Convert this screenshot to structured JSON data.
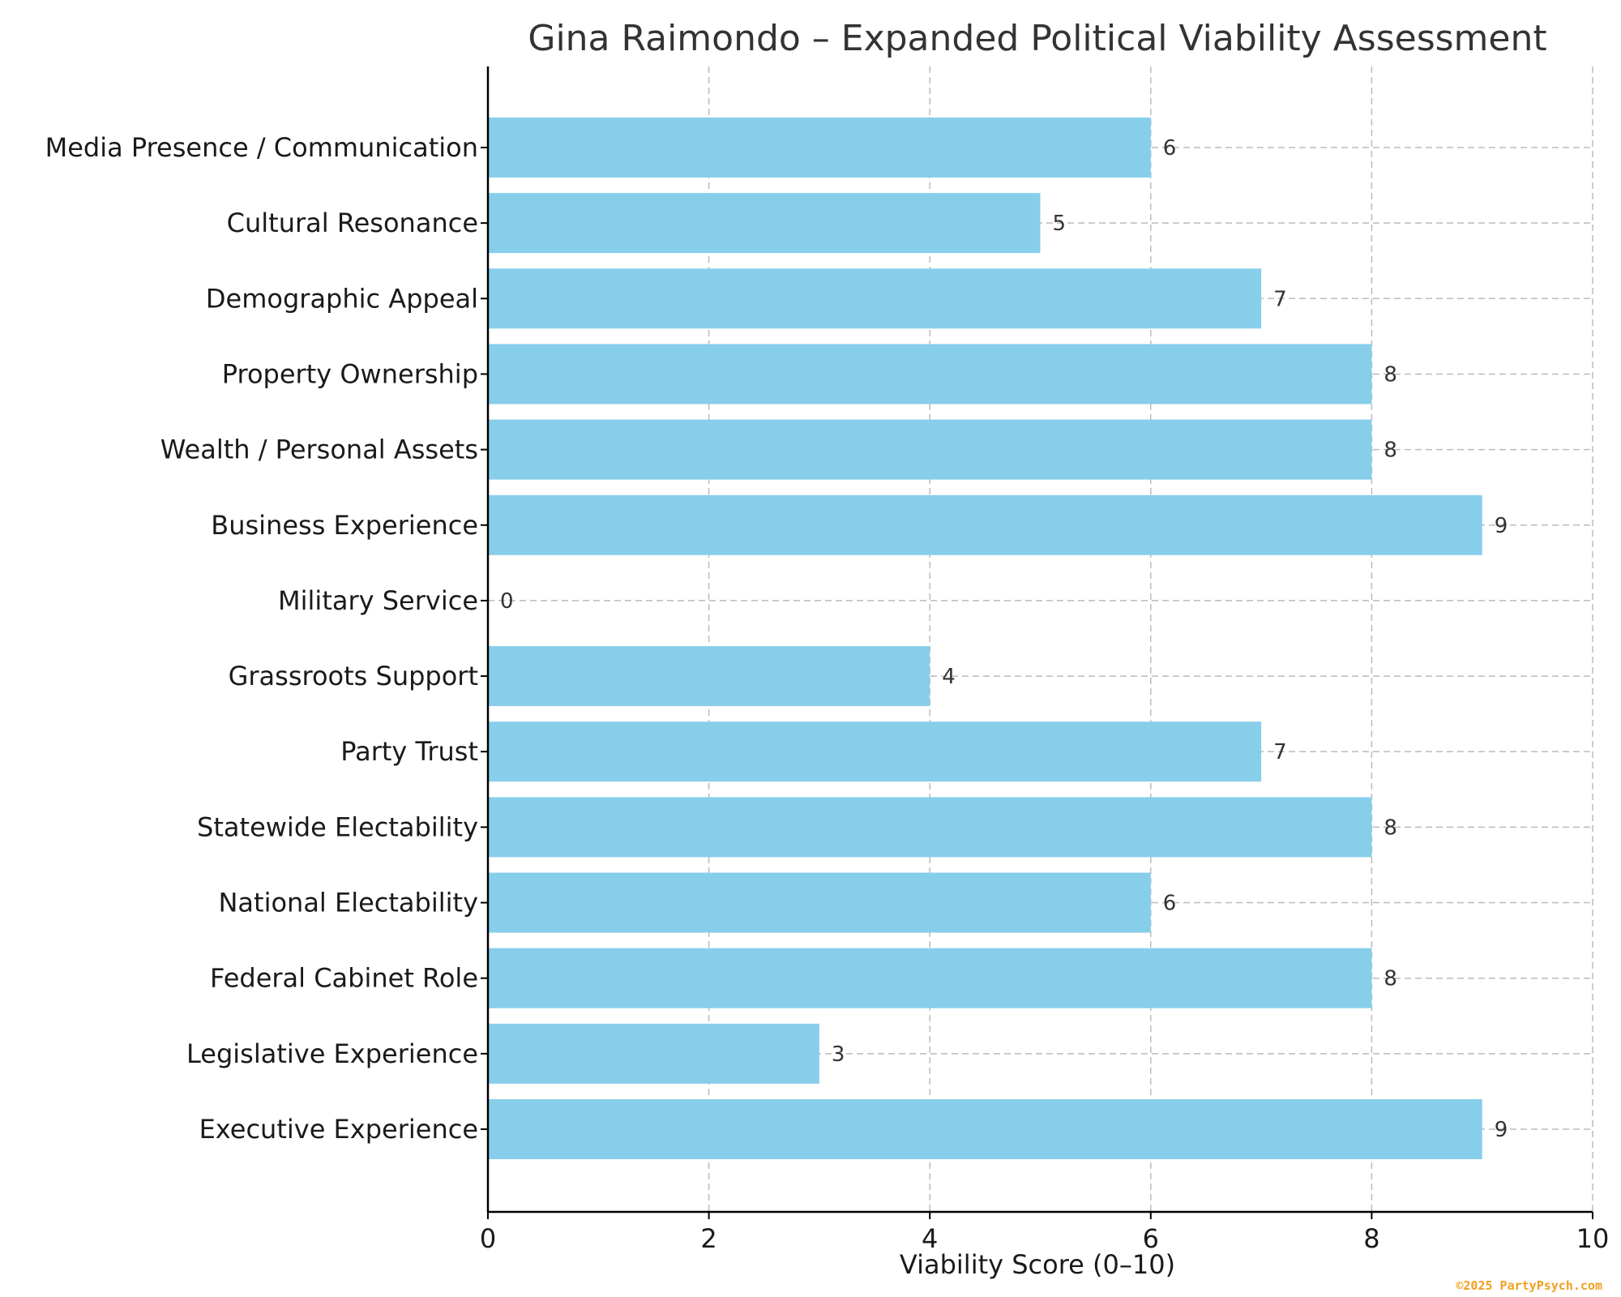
{
  "chart_data": {
    "type": "bar",
    "orientation": "horizontal",
    "title": "Gina Raimondo – Expanded Political Viability Assessment",
    "xlabel": "Viability Score (0–10)",
    "ylabel": "",
    "xlim": [
      0,
      10
    ],
    "xticks": [
      "0",
      "2",
      "4",
      "6",
      "8",
      "10"
    ],
    "grid": true,
    "categories": [
      "Executive Experience",
      "Legislative Experience",
      "Federal Cabinet Role",
      "National Electability",
      "Statewide Electability",
      "Party Trust",
      "Grassroots Support",
      "Military Service",
      "Business Experience",
      "Wealth / Personal Assets",
      "Property Ownership",
      "Demographic Appeal",
      "Cultural Resonance",
      "Media Presence / Communication"
    ],
    "values": [
      9,
      3,
      8,
      6,
      8,
      7,
      4,
      0,
      9,
      8,
      8,
      7,
      5,
      6
    ],
    "bar_color": "#87CEEB",
    "grid_color": "#bbbbbb",
    "watermark": "©2025 PartyPsych.com",
    "watermark_color": "#f0a020"
  }
}
